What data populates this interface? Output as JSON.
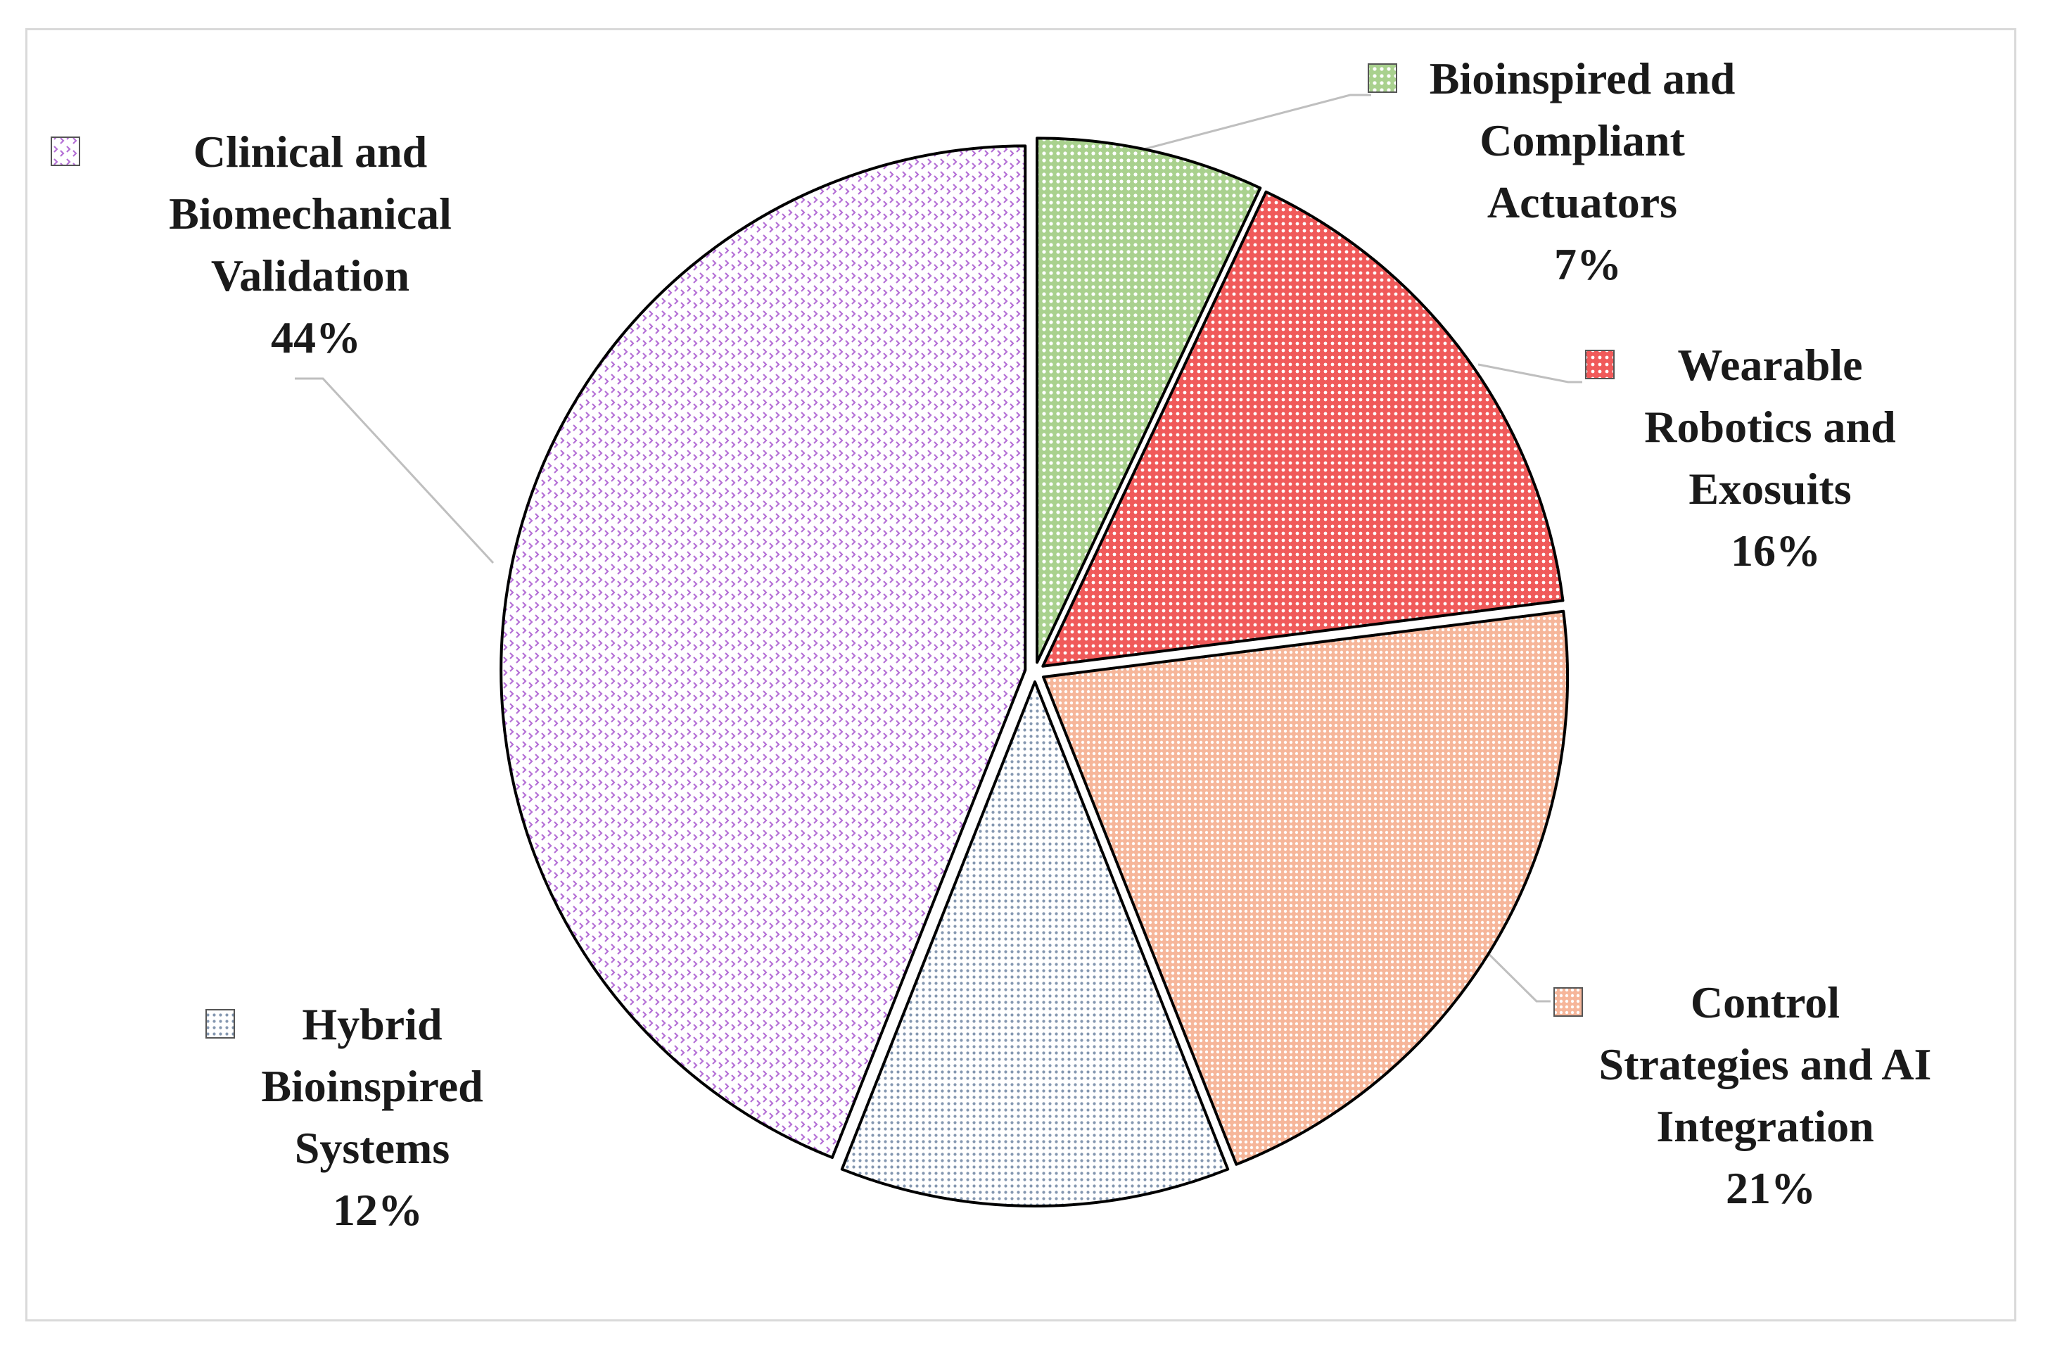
{
  "chart_data": {
    "type": "pie",
    "start_angle_deg": 0,
    "direction": "clockwise",
    "slices": [
      {
        "id": "bioinspired",
        "label_lines": [
          "Bioinspired and",
          "Compliant",
          "Actuators"
        ],
        "value": 7,
        "value_label": "7%",
        "color": "#a9d18e",
        "pattern": "dots-green"
      },
      {
        "id": "wearable",
        "label_lines": [
          "Wearable",
          "Robotics and",
          "Exosuits"
        ],
        "value": 16,
        "value_label": "16%",
        "color": "#f46b6b",
        "pattern": "dots-red"
      },
      {
        "id": "control",
        "label_lines": [
          "Control",
          "Strategies and AI",
          "Integration"
        ],
        "value": 21,
        "value_label": "21%",
        "color": "#f8cbad",
        "pattern": "dots-peach"
      },
      {
        "id": "hybrid",
        "label_lines": [
          "Hybrid",
          "Bioinspired",
          "Systems"
        ],
        "value": 12,
        "value_label": "12%",
        "color": "#dae3f3",
        "pattern": "dots-blue"
      },
      {
        "id": "clinical",
        "label_lines": [
          "Clinical and",
          "Biomechanical",
          "Validation"
        ],
        "value": 44,
        "value_label": "44%",
        "color": "#f3e4f7",
        "pattern": "zigzag-purple"
      }
    ]
  }
}
